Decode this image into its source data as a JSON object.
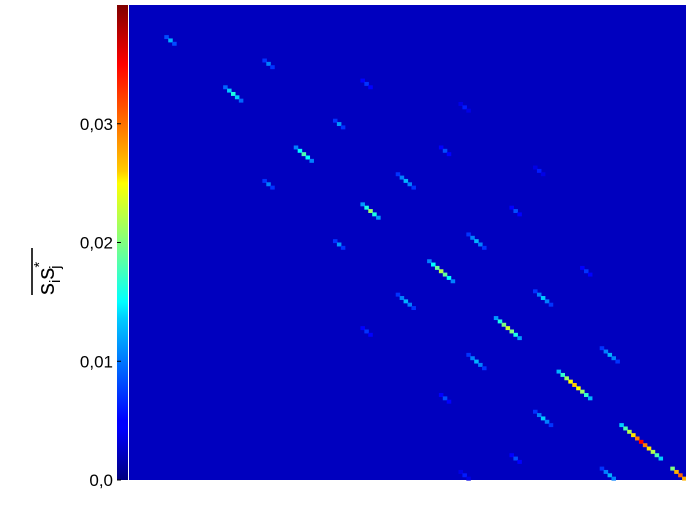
{
  "chart_data": {
    "type": "heatmap",
    "title": "",
    "xlabel": "",
    "ylabel": "s_i s_j*",
    "ylabel_parts": {
      "base1": "s",
      "sub1": "i",
      "base2": "s",
      "sup2": "*",
      "sub2": "j"
    },
    "colormap": "jet",
    "colorbar_range": [
      0.0,
      0.04
    ],
    "colorbar_ticks": [
      {
        "value": 0.0,
        "label": "0,0"
      },
      {
        "value": 0.01,
        "label": "0,01"
      },
      {
        "value": 0.02,
        "label": "0,02"
      },
      {
        "value": 0.03,
        "label": "0,03"
      }
    ],
    "background_value": 0.0025,
    "matrix_size": 142,
    "diagonal_bands": [
      {
        "offset": 0,
        "clusters": [
          {
            "center": 10,
            "half_width": 1,
            "values": [
              0.008,
              0.012,
              0.008
            ]
          },
          {
            "center": 26,
            "half_width": 2,
            "values": [
              0.009,
              0.013,
              0.016,
              0.013,
              0.009
            ]
          },
          {
            "center": 44,
            "half_width": 2,
            "values": [
              0.01,
              0.015,
              0.018,
              0.015,
              0.01
            ]
          },
          {
            "center": 61,
            "half_width": 2,
            "values": [
              0.011,
              0.016,
              0.021,
              0.016,
              0.011
            ]
          },
          {
            "center": 79,
            "half_width": 3,
            "values": [
              0.01,
              0.015,
              0.019,
              0.022,
              0.019,
              0.015,
              0.01
            ]
          },
          {
            "center": 96,
            "half_width": 3,
            "values": [
              0.011,
              0.016,
              0.02,
              0.023,
              0.02,
              0.016,
              0.011
            ]
          },
          {
            "center": 113,
            "half_width": 4,
            "values": [
              0.012,
              0.017,
              0.021,
              0.025,
              0.027,
              0.025,
              0.021,
              0.017,
              0.012
            ]
          },
          {
            "center": 130,
            "half_width": 5,
            "values": [
              0.013,
              0.018,
              0.022,
              0.026,
              0.03,
              0.035,
              0.03,
              0.026,
              0.022,
              0.018,
              0.013
            ]
          },
          {
            "center": 140,
            "half_width": 2,
            "values": [
              0.02,
              0.028,
              0.031,
              0.028,
              0.02
            ]
          }
        ]
      },
      {
        "offset": 18,
        "clusters": [
          {
            "center": 35,
            "half_width": 1,
            "values": [
              0.007,
              0.01,
              0.007
            ]
          },
          {
            "center": 53,
            "half_width": 1,
            "values": [
              0.007,
              0.011,
              0.007
            ]
          },
          {
            "center": 70,
            "half_width": 2,
            "values": [
              0.007,
              0.01,
              0.012,
              0.01,
              0.007
            ]
          },
          {
            "center": 88,
            "half_width": 2,
            "values": [
              0.007,
              0.01,
              0.012,
              0.01,
              0.007
            ]
          },
          {
            "center": 105,
            "half_width": 2,
            "values": [
              0.007,
              0.01,
              0.013,
              0.01,
              0.007
            ]
          },
          {
            "center": 122,
            "half_width": 2,
            "values": [
              0.007,
              0.01,
              0.012,
              0.01,
              0.007
            ]
          }
        ]
      },
      {
        "offset": -18,
        "clusters": [
          {
            "center": 35,
            "half_width": 1,
            "values": [
              0.007,
              0.01,
              0.007
            ]
          },
          {
            "center": 53,
            "half_width": 1,
            "values": [
              0.007,
              0.011,
              0.007
            ]
          },
          {
            "center": 70,
            "half_width": 2,
            "values": [
              0.007,
              0.01,
              0.012,
              0.01,
              0.007
            ]
          },
          {
            "center": 88,
            "half_width": 2,
            "values": [
              0.007,
              0.01,
              0.012,
              0.01,
              0.007
            ]
          },
          {
            "center": 105,
            "half_width": 2,
            "values": [
              0.007,
              0.01,
              0.013,
              0.01,
              0.007
            ]
          },
          {
            "center": 122,
            "half_width": 2,
            "values": [
              0.007,
              0.01,
              0.012,
              0.01,
              0.007
            ]
          }
        ]
      },
      {
        "offset": 37,
        "clusters": [
          {
            "center": 60,
            "half_width": 1,
            "values": [
              0.005,
              0.007,
              0.005
            ]
          },
          {
            "center": 80,
            "half_width": 1,
            "values": [
              0.005,
              0.008,
              0.005
            ]
          },
          {
            "center": 98,
            "half_width": 1,
            "values": [
              0.005,
              0.008,
              0.005
            ]
          },
          {
            "center": 116,
            "half_width": 1,
            "values": [
              0.005,
              0.007,
              0.005
            ]
          }
        ]
      },
      {
        "offset": -37,
        "clusters": [
          {
            "center": 60,
            "half_width": 1,
            "values": [
              0.005,
              0.007,
              0.005
            ]
          },
          {
            "center": 80,
            "half_width": 1,
            "values": [
              0.005,
              0.008,
              0.005
            ]
          },
          {
            "center": 98,
            "half_width": 1,
            "values": [
              0.005,
              0.008,
              0.005
            ]
          },
          {
            "center": 116,
            "half_width": 1,
            "values": [
              0.005,
              0.007,
              0.005
            ]
          }
        ]
      },
      {
        "offset": 55,
        "clusters": [
          {
            "center": 85,
            "half_width": 1,
            "values": [
              0.004,
              0.006,
              0.004
            ]
          },
          {
            "center": 104,
            "half_width": 1,
            "values": [
              0.004,
              0.006,
              0.004
            ]
          }
        ]
      },
      {
        "offset": -55,
        "clusters": [
          {
            "center": 85,
            "half_width": 1,
            "values": [
              0.004,
              0.006,
              0.004
            ]
          },
          {
            "center": 104,
            "half_width": 1,
            "values": [
              0.004,
              0.006,
              0.004
            ]
          }
        ]
      }
    ]
  }
}
